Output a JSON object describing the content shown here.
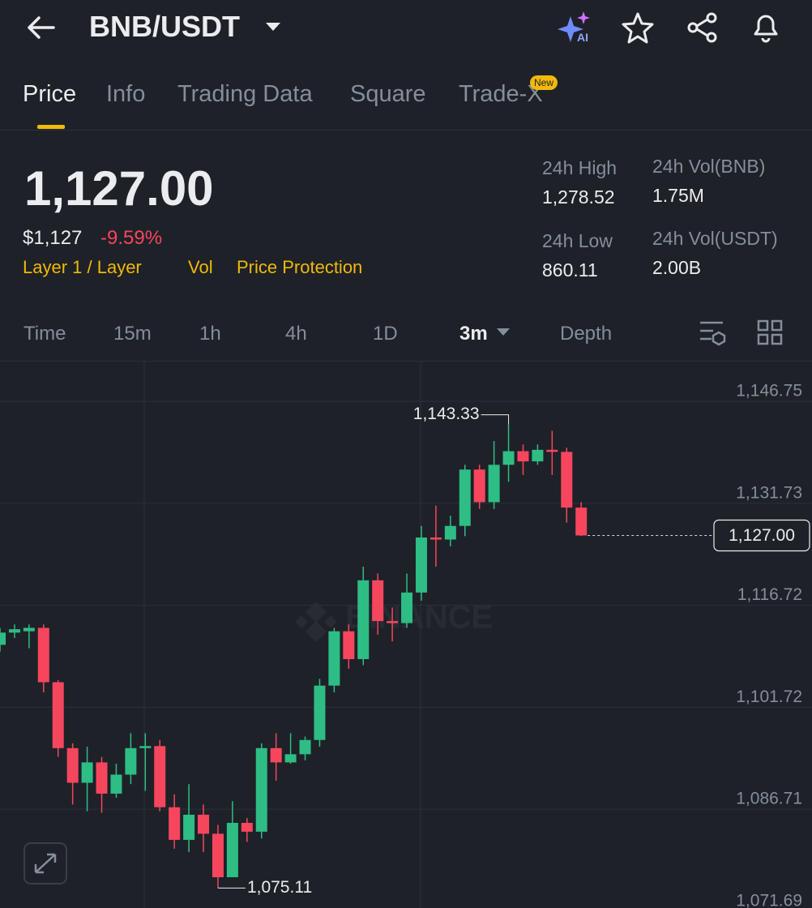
{
  "header": {
    "title": "BNB/USDT",
    "ai_badge": "AI"
  },
  "tabs": {
    "items": [
      "Price",
      "Info",
      "Trading Data",
      "Square",
      "Trade-X"
    ],
    "new_badge": "New"
  },
  "ticker": {
    "price": "1,127.00",
    "price_usd": "$1,127",
    "change": "-9.59%",
    "tags": [
      "Layer 1 / Layer",
      "Vol",
      "Price Protection"
    ],
    "stats": [
      {
        "label": "24h High",
        "value": "1,278.52"
      },
      {
        "label": "24h Vol(BNB)",
        "value": "1.75M"
      },
      {
        "label": "24h Low",
        "value": "860.11"
      },
      {
        "label": "24h Vol(USDT)",
        "value": "2.00B"
      }
    ]
  },
  "timeframes": [
    "Time",
    "15m",
    "1h",
    "4h",
    "1D",
    "3m",
    "Depth"
  ],
  "chart_data": {
    "type": "candlestick",
    "watermark": "BINANCE",
    "up_color": "#2ebd85",
    "down_color": "#f6465d",
    "open": [
      1110.9,
      1112.7,
      1112.9,
      1113.4,
      1105.4,
      1095.7,
      1090.6,
      1093.6,
      1089.0,
      1091.8,
      1095.7,
      1096.0,
      1087.0,
      1082.2,
      1085.9,
      1083.1,
      1076.7,
      1084.7,
      1083.4,
      1095.7,
      1093.6,
      1094.8,
      1096.9,
      1104.9,
      1112.9,
      1108.8,
      1120.4,
      1114.4,
      1114.1,
      1118.6,
      1126.7,
      1126.4,
      1128.4,
      1136.7,
      1131.9,
      1137.4,
      1139.4,
      1137.9,
      1139.6,
      1139.3,
      1131.1
    ],
    "high": [
      1113.4,
      1113.9,
      1113.9,
      1113.9,
      1105.7,
      1096.4,
      1095.9,
      1094.4,
      1093.4,
      1097.9,
      1097.9,
      1096.9,
      1088.9,
      1090.4,
      1087.4,
      1084.4,
      1087.9,
      1085.4,
      1096.4,
      1097.9,
      1097.9,
      1097.4,
      1105.9,
      1113.4,
      1113.9,
      1122.4,
      1121.4,
      1116.4,
      1121.4,
      1128.4,
      1131.4,
      1129.9,
      1137.4,
      1137.4,
      1140.9,
      1143.33,
      1140.4,
      1140.4,
      1142.4,
      1139.9,
      1131.9
    ],
    "low": [
      1109.9,
      1111.9,
      1110.4,
      1103.9,
      1094.4,
      1087.4,
      1086.4,
      1086.2,
      1088.4,
      1090.4,
      1089.4,
      1086.4,
      1080.9,
      1080.4,
      1080.4,
      1075.11,
      1076.9,
      1081.9,
      1082.4,
      1090.9,
      1093.4,
      1093.9,
      1095.9,
      1103.9,
      1107.4,
      1107.9,
      1112.4,
      1111.4,
      1113.4,
      1117.4,
      1122.4,
      1125.4,
      1126.9,
      1130.9,
      1130.9,
      1134.9,
      1135.9,
      1137.4,
      1135.9,
      1128.9,
      1126.9
    ],
    "close": [
      1112.7,
      1113.2,
      1113.4,
      1105.4,
      1095.7,
      1090.6,
      1093.6,
      1089.0,
      1091.8,
      1095.7,
      1096.0,
      1087.0,
      1082.2,
      1085.9,
      1083.1,
      1076.7,
      1084.7,
      1083.4,
      1095.7,
      1093.6,
      1094.8,
      1096.9,
      1104.9,
      1112.9,
      1108.8,
      1120.4,
      1114.4,
      1114.1,
      1118.6,
      1126.7,
      1126.4,
      1128.4,
      1136.7,
      1131.9,
      1137.4,
      1139.4,
      1137.9,
      1139.6,
      1139.3,
      1131.1,
      1127
    ],
    "ylim": [
      1072.17,
      1152.59
    ],
    "yticks": [
      {
        "value": 1146.75,
        "label": "1,146.75"
      },
      {
        "value": 1131.73,
        "label": "1,131.73"
      },
      {
        "value": 1116.72,
        "label": "1,116.72"
      },
      {
        "value": 1101.72,
        "label": "1,101.72"
      },
      {
        "value": 1086.71,
        "label": "1,086.71"
      },
      {
        "value": 1071.69,
        "label": "1,071.69"
      }
    ],
    "max_label": {
      "value": 1143.33,
      "label": "1,143.33"
    },
    "min_label": {
      "value": 1075.11,
      "label": "1,075.11"
    },
    "last_price": {
      "value": 1127,
      "label": "1,127.00"
    },
    "grid": true
  }
}
